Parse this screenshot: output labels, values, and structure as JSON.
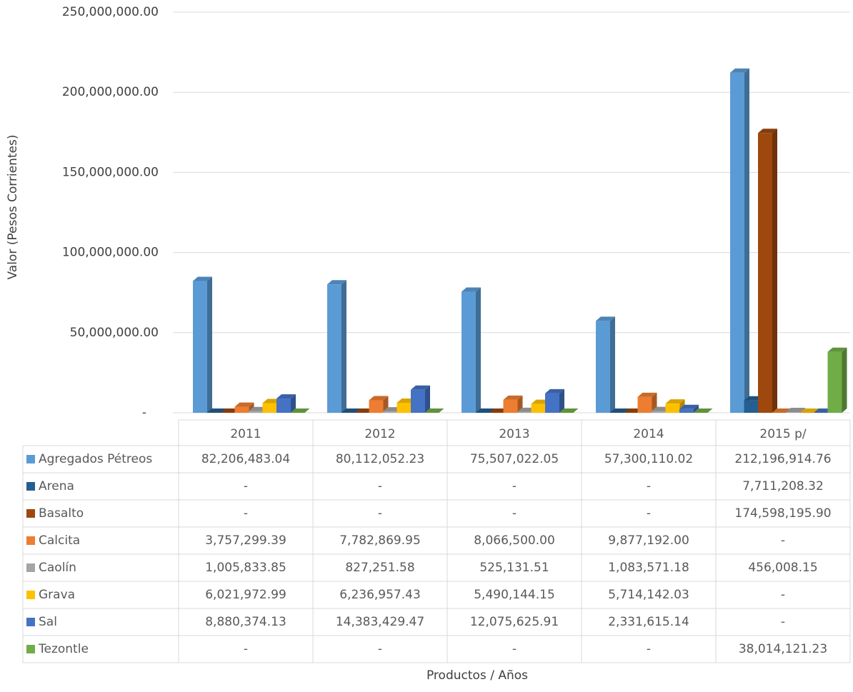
{
  "chart_data": {
    "type": "bar3d",
    "y_axis_label": "Valor (Pesos Corrientes)",
    "x_axis_label": "Productos / Años",
    "categories": [
      "2011",
      "2012",
      "2013",
      "2014",
      "2015 p/"
    ],
    "ylim": [
      0,
      250000000
    ],
    "yticks": [
      {
        "value": 0,
        "label": "-"
      },
      {
        "value": 50000000,
        "label": "50,000,000.00"
      },
      {
        "value": 100000000,
        "label": "100,000,000.00"
      },
      {
        "value": 150000000,
        "label": "150,000,000.00"
      },
      {
        "value": 200000000,
        "label": "200,000,000.00"
      },
      {
        "value": 250000000,
        "label": "250,000,000.00"
      }
    ],
    "grid": true,
    "series": [
      {
        "name": "Agregados Pétreos",
        "color": "#5b9bd5",
        "values": [
          82206483.04,
          80112052.23,
          75507022.05,
          57300110.02,
          212196914.76
        ],
        "value_labels": [
          "82,206,483.04",
          "80,112,052.23",
          "75,507,022.05",
          "57,300,110.02",
          "212,196,914.76"
        ]
      },
      {
        "name": "Arena",
        "color": "#255e91",
        "values": [
          0,
          0,
          0,
          0,
          7711208.32
        ],
        "value_labels": [
          "-",
          "-",
          "-",
          "-",
          "7,711,208.32"
        ]
      },
      {
        "name": "Basalto",
        "color": "#9e480e",
        "values": [
          0,
          0,
          0,
          0,
          174598195.9
        ],
        "value_labels": [
          "-",
          "-",
          "-",
          "-",
          "174,598,195.90"
        ]
      },
      {
        "name": "Calcita",
        "color": "#ed7d31",
        "values": [
          3757299.39,
          7782869.95,
          8066500.0,
          9877192.0,
          0
        ],
        "value_labels": [
          "3,757,299.39",
          "7,782,869.95",
          "8,066,500.00",
          "9,877,192.00",
          "-"
        ]
      },
      {
        "name": "Caolín",
        "color": "#a5a5a5",
        "values": [
          1005833.85,
          827251.58,
          525131.51,
          1083571.18,
          456008.15
        ],
        "value_labels": [
          "1,005,833.85",
          "827,251.58",
          "525,131.51",
          "1,083,571.18",
          "456,008.15"
        ]
      },
      {
        "name": "Grava",
        "color": "#ffc000",
        "values": [
          6021972.99,
          6236957.43,
          5490144.15,
          5714142.03,
          0
        ],
        "value_labels": [
          "6,021,972.99",
          "6,236,957.43",
          "5,490,144.15",
          "5,714,142.03",
          "-"
        ]
      },
      {
        "name": "Sal",
        "color": "#4472c4",
        "values": [
          8880374.13,
          14383429.47,
          12075625.91,
          2331615.14,
          0
        ],
        "value_labels": [
          "8,880,374.13",
          "14,383,429.47",
          "12,075,625.91",
          "2,331,615.14",
          "-"
        ]
      },
      {
        "name": "Tezontle",
        "color": "#70ad47",
        "values": [
          0,
          0,
          0,
          0,
          38014121.23
        ],
        "value_labels": [
          "-",
          "-",
          "-",
          "-",
          "38,014,121.23"
        ]
      }
    ]
  }
}
